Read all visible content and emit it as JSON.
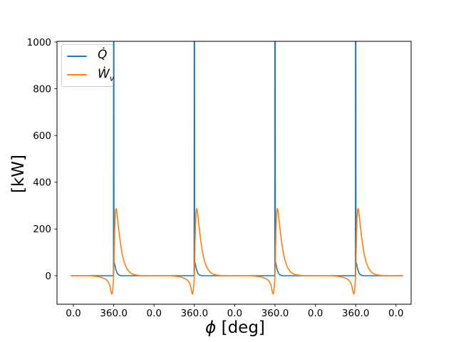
{
  "figure": {
    "background": "#ffffff",
    "axes": {
      "ylabel": "[kW]",
      "xlabel_symbol": "ϕ",
      "xlabel_unit": " [deg]",
      "xticks": [
        {
          "deg": 0,
          "label": "0.0"
        },
        {
          "deg": 360,
          "label": "360.0"
        },
        {
          "deg": 720,
          "label": "0.0"
        },
        {
          "deg": 1080,
          "label": "360.0"
        },
        {
          "deg": 1440,
          "label": "0.0"
        },
        {
          "deg": 1800,
          "label": "360.0"
        },
        {
          "deg": 2160,
          "label": "0.0"
        },
        {
          "deg": 2520,
          "label": "360.0"
        },
        {
          "deg": 2880,
          "label": "0.0"
        }
      ],
      "yticks": [
        {
          "kw": 0,
          "label": "0"
        },
        {
          "kw": 200,
          "label": "200"
        },
        {
          "kw": 400,
          "label": "400"
        },
        {
          "kw": 600,
          "label": "600"
        },
        {
          "kw": 800,
          "label": "800"
        },
        {
          "kw": 1000,
          "label": "1000"
        }
      ]
    },
    "legend": {
      "entries": [
        {
          "symbol": "Q̇",
          "sub": "",
          "color": "#1f77b4"
        },
        {
          "symbol": "Ẇ",
          "sub": "v",
          "color": "#ff7f0e"
        }
      ]
    }
  },
  "chart_data": {
    "type": "line",
    "title": "",
    "xlabel": "ϕ [deg]",
    "ylabel": "[kW]",
    "legend_position": "upper left",
    "grid": false,
    "cycles": 4,
    "period_deg": 720,
    "x_window": {
      "start_deg": -19,
      "end_deg": 2939
    },
    "xtick_spacing_deg": 360,
    "xtick_labels_repeat": [
      "0.0",
      "360.0"
    ],
    "ylim": [
      -122,
      1003
    ],
    "series": [
      {
        "name": "Q̇",
        "color": "#1f77b4",
        "note": "heat release rate; narrow spike at 360 deg of each cycle exceeds axis and is clipped at 1000 kW",
        "waveform_deg_kw": [
          [
            0,
            0
          ],
          [
            320,
            0
          ],
          [
            352,
            0
          ],
          [
            356,
            1
          ],
          [
            358,
            8
          ],
          [
            358.8,
            1060
          ],
          [
            361.5,
            1060
          ],
          [
            362.5,
            110
          ],
          [
            363.5,
            60
          ],
          [
            367,
            54
          ],
          [
            371,
            44
          ],
          [
            376,
            32
          ],
          [
            382,
            22
          ],
          [
            389,
            13
          ],
          [
            397,
            7
          ],
          [
            406,
            3
          ],
          [
            418,
            1
          ],
          [
            432,
            0
          ],
          [
            720,
            0
          ]
        ]
      },
      {
        "name": "Ẇ_v",
        "color": "#ff7f0e",
        "note": "piston work rate; dip to about -78 kW before TDC, peak about 288 kW after TDC, exponential decay",
        "waveform_deg_kw": [
          [
            0,
            0
          ],
          [
            140,
            0
          ],
          [
            190,
            -2
          ],
          [
            230,
            -5
          ],
          [
            262,
            -9
          ],
          [
            288,
            -15
          ],
          [
            306,
            -23
          ],
          [
            318,
            -33
          ],
          [
            326,
            -45
          ],
          [
            331,
            -56
          ],
          [
            335,
            -66
          ],
          [
            339,
            -74
          ],
          [
            342,
            -78
          ],
          [
            345,
            -77
          ],
          [
            348,
            -70
          ],
          [
            352,
            -55
          ],
          [
            355,
            -38
          ],
          [
            358,
            -18
          ],
          [
            360,
            2
          ],
          [
            362,
            45
          ],
          [
            365,
            115
          ],
          [
            368,
            185
          ],
          [
            372,
            243
          ],
          [
            376,
            275
          ],
          [
            380,
            288
          ],
          [
            384,
            284
          ],
          [
            389,
            268
          ],
          [
            395,
            243
          ],
          [
            402,
            212
          ],
          [
            410,
            178
          ],
          [
            419,
            144
          ],
          [
            429,
            112
          ],
          [
            440,
            84
          ],
          [
            452,
            61
          ],
          [
            465,
            43
          ],
          [
            479,
            29
          ],
          [
            494,
            19
          ],
          [
            510,
            12
          ],
          [
            528,
            7
          ],
          [
            548,
            4
          ],
          [
            570,
            2
          ],
          [
            595,
            1
          ],
          [
            620,
            0
          ],
          [
            720,
            0
          ]
        ]
      }
    ]
  }
}
